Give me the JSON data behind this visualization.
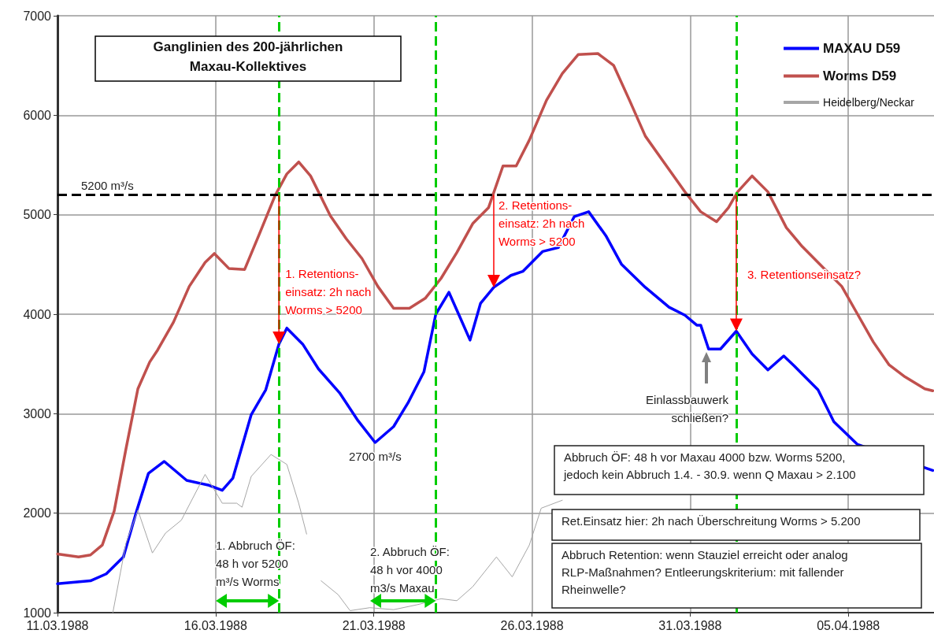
{
  "chart_data": {
    "type": "line",
    "title": "Ganglinien des 200-jährlichen\nMaxau-Kollektives",
    "xlim": [
      "1988-03-11T00:00",
      "1988-04-07T17:00"
    ],
    "xticks": [
      {
        "value": "1988-03-11T00:00",
        "label": "11.03.1988"
      },
      {
        "value": "1988-03-16T00:00",
        "label": "16.03.1988"
      },
      {
        "value": "1988-03-21T00:00",
        "label": "21.03.1988"
      },
      {
        "value": "1988-03-26T00:00",
        "label": "26.03.1988"
      },
      {
        "value": "1988-03-31T00:00",
        "label": "31.03.1988"
      },
      {
        "value": "1988-04-05T00:00",
        "label": "05.04.1988"
      }
    ],
    "ylim": [
      1000,
      7000
    ],
    "yticks": [
      1000,
      2000,
      3000,
      4000,
      5000,
      6000,
      7000
    ],
    "grid": true,
    "legend": "top right",
    "line_style": "solid",
    "series": [
      {
        "name": "MAXAU D59",
        "color": "#0000ff",
        "x": [
          "1988-03-11T00:00",
          "1988-03-12T01:00",
          "1988-03-12T13:00",
          "1988-03-13T02:00",
          "1988-03-13T12:00",
          "1988-03-13T21:00",
          "1988-03-14T09:00",
          "1988-03-15T02:00",
          "1988-03-15T19:00",
          "1988-03-16T05:00",
          "1988-03-16T13:00",
          "1988-03-17T03:00",
          "1988-03-17T14:00",
          "1988-03-18T00:00",
          "1988-03-18T06:00",
          "1988-03-18T18:00",
          "1988-03-19T06:00",
          "1988-03-19T22:00",
          "1988-03-20T12:00",
          "1988-03-21T01:00",
          "1988-03-21T15:00",
          "1988-03-22T02:00",
          "1988-03-22T14:00",
          "1988-03-22T23:00",
          "1988-03-23T09:00",
          "1988-03-23T18:00",
          "1988-03-24T01:00",
          "1988-03-24T09:00",
          "1988-03-24T19:00",
          "1988-03-25T08:00",
          "1988-03-25T17:00",
          "1988-03-26T08:00",
          "1988-03-26T20:00",
          "1988-03-27T08:00",
          "1988-03-27T19:00",
          "1988-03-28T08:00",
          "1988-03-28T20:00",
          "1988-03-29T14:00",
          "1988-03-30T08:00",
          "1988-03-30T20:00",
          "1988-03-31T05:00",
          "1988-03-31T08:00",
          "1988-03-31T14:00",
          "1988-03-31T23:00",
          "1988-04-01T11:00",
          "1988-04-01T23:00",
          "1988-04-02T11:00",
          "1988-04-02T23:00",
          "1988-04-03T07:00",
          "1988-04-04T01:00",
          "1988-04-04T13:00",
          "1988-04-05T07:00",
          "1988-04-07T16:00"
        ],
        "values": [
          1290,
          1320,
          1390,
          1560,
          2020,
          2400,
          2520,
          2330,
          2280,
          2230,
          2350,
          2990,
          3240,
          3700,
          3860,
          3700,
          3450,
          3210,
          2930,
          2710,
          2870,
          3110,
          3420,
          4000,
          4220,
          3950,
          3740,
          4110,
          4270,
          4390,
          4430,
          4630,
          4670,
          4980,
          5030,
          4790,
          4500,
          4270,
          4070,
          3990,
          3890,
          3890,
          3650,
          3650,
          3830,
          3600,
          3440,
          3580,
          3480,
          3240,
          2920,
          2690,
          2430
        ]
      },
      {
        "name": "Worms D59",
        "color": "#c0504d",
        "x": [
          "1988-03-11T00:00",
          "1988-03-11T16:00",
          "1988-03-12T01:00",
          "1988-03-12T10:00",
          "1988-03-12T19:00",
          "1988-03-13T04:00",
          "1988-03-13T13:00",
          "1988-03-13T22:00",
          "1988-03-14T04:00",
          "1988-03-14T16:00",
          "1988-03-15T04:00",
          "1988-03-15T16:00",
          "1988-03-15T23:00",
          "1988-03-16T10:00",
          "1988-03-16T22:00",
          "1988-03-17T09:00",
          "1988-03-17T21:00",
          "1988-03-18T06:00",
          "1988-03-18T15:00",
          "1988-03-19T00:00",
          "1988-03-19T15:00",
          "1988-03-20T03:00",
          "1988-03-20T15:00",
          "1988-03-21T03:00",
          "1988-03-21T15:00",
          "1988-03-22T03:00",
          "1988-03-22T15:00",
          "1988-03-23T03:00",
          "1988-03-23T15:00",
          "1988-03-24T03:00",
          "1988-03-24T15:00",
          "1988-03-25T02:00",
          "1988-03-25T12:00",
          "1988-03-25T22:00",
          "1988-03-26T11:00",
          "1988-03-26T23:00",
          "1988-03-27T11:00",
          "1988-03-28T02:00",
          "1988-03-28T14:00",
          "1988-03-29T02:00",
          "1988-03-29T14:00",
          "1988-03-30T05:00",
          "1988-03-30T20:00",
          "1988-03-31T08:00",
          "1988-03-31T20:00",
          "1988-04-01T05:00",
          "1988-04-01T12:00",
          "1988-04-01T23:00",
          "1988-04-02T11:00",
          "1988-04-03T01:00",
          "1988-04-03T13:00",
          "1988-04-04T01:00",
          "1988-04-04T19:00",
          "1988-04-05T07:00",
          "1988-04-05T19:00",
          "1988-04-06T07:00",
          "1988-04-06T19:00",
          "1988-04-07T10:00",
          "1988-04-07T16:00"
        ],
        "values": [
          1590,
          1560,
          1580,
          1680,
          2020,
          2650,
          3250,
          3520,
          3640,
          3920,
          4280,
          4520,
          4610,
          4460,
          4450,
          4800,
          5190,
          5410,
          5530,
          5390,
          4990,
          4760,
          4560,
          4280,
          4060,
          4060,
          4160,
          4360,
          4620,
          4910,
          5070,
          5490,
          5490,
          5750,
          6150,
          6420,
          6610,
          6620,
          6500,
          6150,
          5790,
          5510,
          5230,
          5030,
          4930,
          5070,
          5230,
          5390,
          5230,
          4870,
          4680,
          4520,
          4280,
          4000,
          3720,
          3490,
          3370,
          3250,
          3230
        ]
      },
      {
        "name": "Heidelberg/Neckar",
        "color": "#a6a6a6",
        "x": [
          "1988-03-12T18:00",
          "1988-03-13T04:00",
          "1988-03-13T13:00",
          "1988-03-14T00:00",
          "1988-03-14T10:00",
          "1988-03-14T22:00",
          "1988-03-15T16:00",
          "1988-03-16T05:00",
          "1988-03-16T16:00",
          "1988-03-16T20:00",
          "1988-03-17T03:00",
          "1988-03-17T18:00",
          "1988-03-18T06:00",
          "1988-03-18T15:00",
          "1988-03-18T21:00",
          "1988-03-19T03:00",
          "1988-03-19T08:00",
          "1988-03-19T21:00",
          "1988-03-20T06:00",
          "1988-03-20T21:00",
          "1988-03-21T15:00",
          "1988-03-22T09:00",
          "1988-03-23T03:00",
          "1988-03-23T15:00",
          "1988-03-24T03:00",
          "1988-03-24T21:00",
          "1988-03-25T09:00",
          "1988-03-25T22:00",
          "1988-03-26T07:00",
          "1988-03-26T23:00"
        ],
        "values": [
          1000,
          1700,
          2030,
          1600,
          1800,
          1930,
          2390,
          2100,
          2100,
          2060,
          2370,
          2590,
          2490,
          2100,
          1790,
          null,
          1320,
          1180,
          1020,
          1050,
          1030,
          1080,
          1140,
          1120,
          1260,
          1560,
          1360,
          1680,
          2050,
          2130
        ]
      }
    ],
    "ref_lines": [
      {
        "axis": "y",
        "value": 5200,
        "label": "5200 m³/s",
        "color": "#000000",
        "line_style": "dashed"
      },
      {
        "axis": "x",
        "value": "1988-03-18T00:00",
        "color": "#00cc00",
        "line_style": "dashed"
      },
      {
        "axis": "x",
        "value": "1988-03-22T23:00",
        "color": "#00cc00",
        "line_style": "dashed"
      },
      {
        "axis": "x",
        "value": "1988-04-01T11:00",
        "color": "#00cc00",
        "line_style": "dashed"
      }
    ],
    "annotations": [
      {
        "text": "1. Retentions-\neinsatz: 2h nach\nWorms > 5200",
        "x": "1988-03-18T00:00",
        "y": 4200
      },
      {
        "text": "2. Retentions-\neinsatz: 2h nach\nWorms > 5200",
        "x": "1988-03-24T19:00",
        "y": 5200
      },
      {
        "text": "3. Retentionseinsatz?",
        "x": "1988-04-01T11:00",
        "y": 4380
      },
      {
        "text": "2700 m³/s",
        "x": "1988-03-21T01:00",
        "y": 2710
      },
      "Einlassbauwerk\nschließen?",
      "1. Abbruch ÖF:\n48 h vor 5200\nm³/s Worms",
      "2. Abbruch ÖF:\n48 h vor 4000\nm3/s Maxau",
      "Abbruch ÖF: 48 h vor Maxau 4000 bzw. Worms 5200,\njedoch kein Abbruch 1.4. - 30.9. wenn Q Maxau > 2.100",
      "Ret.Einsatz hier: 2h nach Überschreitung Worms > 5.200",
      "Abbruch Retention: wenn Stauziel erreicht oder analog\nRLP-Maßnahmen? Entleerungskriterium: mit fallender\nRheinwelle?"
    ]
  }
}
